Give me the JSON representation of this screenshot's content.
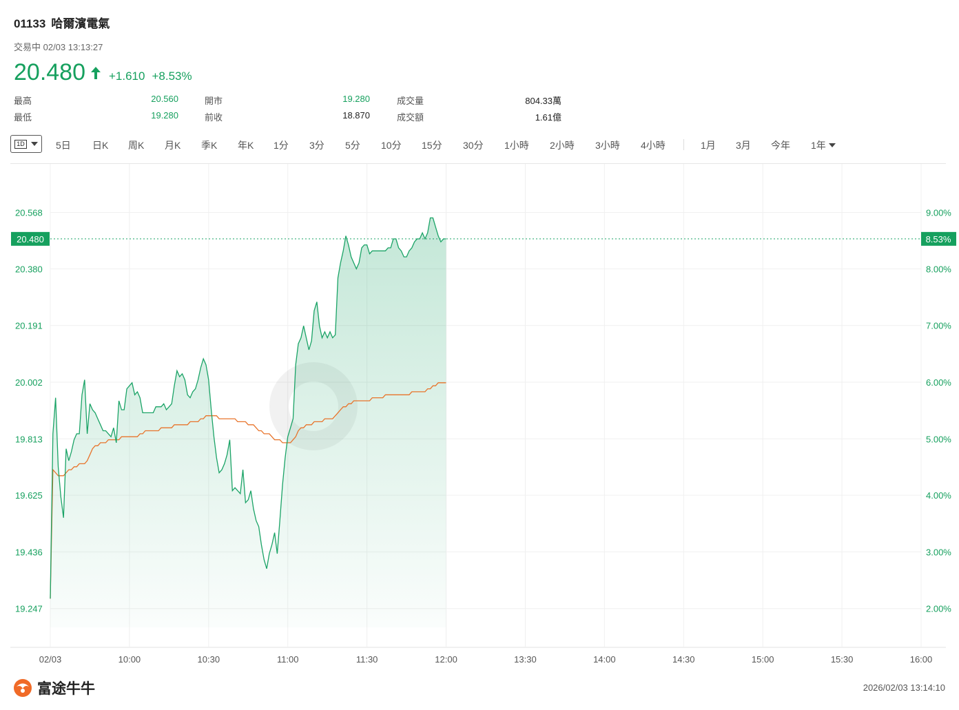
{
  "header": {
    "code": "01133",
    "name": "哈爾濱電氣",
    "status": "交易中 02/03 13:13:27",
    "price": "20.480",
    "change": "+1.610",
    "change_pct": "+8.53%",
    "up_color": "#16a05e",
    "arrow_icon": "arrow-up-icon"
  },
  "stats": [
    {
      "label": "最高",
      "value": "20.560",
      "tone": "green"
    },
    {
      "label": "最低",
      "value": "19.280",
      "tone": "green"
    },
    {
      "label": "開市",
      "value": "19.280",
      "tone": "green"
    },
    {
      "label": "前收",
      "value": "18.870",
      "tone": "dark"
    },
    {
      "label": "成交量",
      "value": "804.33萬",
      "tone": "dark"
    },
    {
      "label": "成交額",
      "value": "1.61億",
      "tone": "dark"
    }
  ],
  "toolbar": {
    "period_box": "1D",
    "tabs": [
      "5日",
      "日K",
      "周K",
      "月K",
      "季K",
      "年K",
      "1分",
      "3分",
      "5分",
      "10分",
      "15分",
      "30分",
      "1小時",
      "2小時",
      "3小時",
      "4小時",
      "1月",
      "3月",
      "今年",
      "1年"
    ]
  },
  "chart_data": {
    "type": "line",
    "y_ticks": [
      "20.568",
      "20.380",
      "20.191",
      "20.002",
      "19.813",
      "19.625",
      "19.436",
      "19.247"
    ],
    "y_tick_values": [
      20.568,
      20.38,
      20.191,
      20.002,
      19.813,
      19.625,
      19.436,
      19.247
    ],
    "y_right_ticks": [
      "9.00%",
      "8.00%",
      "7.00%",
      "6.00%",
      "5.00%",
      "4.00%",
      "3.00%",
      "2.00%"
    ],
    "x_ticks": [
      "02/03",
      "10:00",
      "10:30",
      "11:00",
      "11:30",
      "12:00",
      "13:30",
      "14:00",
      "14:30",
      "15:00",
      "15:30",
      "16:00"
    ],
    "current_price_label": "20.480",
    "current_pct_label": "8.53%",
    "current_value": 20.48,
    "prev_close": 18.87,
    "ylim": [
      19.12,
      20.73
    ],
    "price_color": "#1aa366",
    "avg_color": "#e8732a",
    "price_series": [
      [
        0,
        19.28
      ],
      [
        1,
        19.83
      ],
      [
        2,
        19.95
      ],
      [
        3,
        19.72
      ],
      [
        4,
        19.62
      ],
      [
        5,
        19.55
      ],
      [
        6,
        19.78
      ],
      [
        7,
        19.74
      ],
      [
        8,
        19.77
      ],
      [
        9,
        19.81
      ],
      [
        10,
        19.83
      ],
      [
        11,
        19.83
      ],
      [
        12,
        19.96
      ],
      [
        13,
        20.01
      ],
      [
        14,
        19.83
      ],
      [
        15,
        19.93
      ],
      [
        16,
        19.91
      ],
      [
        17,
        19.9
      ],
      [
        18,
        19.88
      ],
      [
        19,
        19.86
      ],
      [
        20,
        19.84
      ],
      [
        21,
        19.84
      ],
      [
        22,
        19.83
      ],
      [
        23,
        19.82
      ],
      [
        24,
        19.85
      ],
      [
        25,
        19.8
      ],
      [
        26,
        19.94
      ],
      [
        27,
        19.91
      ],
      [
        28,
        19.91
      ],
      [
        29,
        19.98
      ],
      [
        30,
        19.99
      ],
      [
        31,
        20.0
      ],
      [
        32,
        19.96
      ],
      [
        33,
        19.97
      ],
      [
        34,
        19.95
      ],
      [
        35,
        19.9
      ],
      [
        36,
        19.9
      ],
      [
        37,
        19.9
      ],
      [
        38,
        19.9
      ],
      [
        39,
        19.9
      ],
      [
        40,
        19.92
      ],
      [
        41,
        19.92
      ],
      [
        42,
        19.92
      ],
      [
        43,
        19.93
      ],
      [
        44,
        19.91
      ],
      [
        45,
        19.92
      ],
      [
        46,
        19.93
      ],
      [
        47,
        19.99
      ],
      [
        48,
        20.04
      ],
      [
        49,
        20.02
      ],
      [
        50,
        20.03
      ],
      [
        51,
        20.01
      ],
      [
        52,
        19.96
      ],
      [
        53,
        19.95
      ],
      [
        54,
        19.97
      ],
      [
        55,
        19.98
      ],
      [
        56,
        20.01
      ],
      [
        57,
        20.05
      ],
      [
        58,
        20.08
      ],
      [
        59,
        20.06
      ],
      [
        60,
        20.01
      ],
      [
        61,
        19.91
      ],
      [
        62,
        19.82
      ],
      [
        63,
        19.75
      ],
      [
        64,
        19.7
      ],
      [
        65,
        19.71
      ],
      [
        66,
        19.73
      ],
      [
        67,
        19.76
      ],
      [
        68,
        19.81
      ],
      [
        69,
        19.64
      ],
      [
        70,
        19.65
      ],
      [
        71,
        19.64
      ],
      [
        72,
        19.63
      ],
      [
        73,
        19.71
      ],
      [
        74,
        19.6
      ],
      [
        75,
        19.61
      ],
      [
        76,
        19.64
      ],
      [
        77,
        19.58
      ],
      [
        78,
        19.54
      ],
      [
        79,
        19.52
      ],
      [
        80,
        19.46
      ],
      [
        81,
        19.41
      ],
      [
        82,
        19.38
      ],
      [
        83,
        19.43
      ],
      [
        84,
        19.46
      ],
      [
        85,
        19.5
      ],
      [
        86,
        19.43
      ],
      [
        87,
        19.54
      ],
      [
        88,
        19.66
      ],
      [
        89,
        19.75
      ],
      [
        90,
        19.82
      ],
      [
        91,
        19.85
      ],
      [
        92,
        19.88
      ],
      [
        93,
        20.06
      ],
      [
        94,
        20.13
      ],
      [
        95,
        20.15
      ],
      [
        96,
        20.19
      ],
      [
        97,
        20.15
      ],
      [
        98,
        20.11
      ],
      [
        99,
        20.14
      ],
      [
        100,
        20.24
      ],
      [
        101,
        20.27
      ],
      [
        102,
        20.19
      ],
      [
        103,
        20.15
      ],
      [
        104,
        20.17
      ],
      [
        105,
        20.15
      ],
      [
        106,
        20.17
      ],
      [
        107,
        20.15
      ],
      [
        108,
        20.16
      ],
      [
        109,
        20.35
      ],
      [
        110,
        20.4
      ],
      [
        111,
        20.44
      ],
      [
        112,
        20.49
      ],
      [
        113,
        20.46
      ],
      [
        114,
        20.42
      ],
      [
        115,
        20.4
      ],
      [
        116,
        20.38
      ],
      [
        117,
        20.4
      ],
      [
        118,
        20.45
      ],
      [
        119,
        20.46
      ],
      [
        120,
        20.46
      ],
      [
        121,
        20.43
      ],
      [
        122,
        20.44
      ],
      [
        123,
        20.44
      ],
      [
        124,
        20.44
      ],
      [
        125,
        20.44
      ],
      [
        126,
        20.44
      ],
      [
        127,
        20.44
      ],
      [
        128,
        20.45
      ],
      [
        129,
        20.45
      ],
      [
        130,
        20.48
      ],
      [
        131,
        20.48
      ],
      [
        132,
        20.45
      ],
      [
        133,
        20.44
      ],
      [
        134,
        20.42
      ],
      [
        135,
        20.42
      ],
      [
        136,
        20.44
      ],
      [
        137,
        20.45
      ],
      [
        138,
        20.47
      ],
      [
        139,
        20.48
      ],
      [
        140,
        20.48
      ],
      [
        141,
        20.5
      ],
      [
        142,
        20.48
      ],
      [
        143,
        20.5
      ],
      [
        144,
        20.55
      ],
      [
        145,
        20.55
      ],
      [
        146,
        20.52
      ],
      [
        147,
        20.49
      ],
      [
        148,
        20.47
      ],
      [
        149,
        20.48
      ],
      [
        150,
        20.48
      ]
    ],
    "avg_series": [
      [
        0,
        19.28
      ],
      [
        1,
        19.71
      ],
      [
        2,
        19.7
      ],
      [
        3,
        19.69
      ],
      [
        4,
        19.69
      ],
      [
        5,
        19.69
      ],
      [
        6,
        19.7
      ],
      [
        7,
        19.71
      ],
      [
        8,
        19.71
      ],
      [
        9,
        19.72
      ],
      [
        10,
        19.72
      ],
      [
        11,
        19.73
      ],
      [
        12,
        19.73
      ],
      [
        13,
        19.73
      ],
      [
        14,
        19.74
      ],
      [
        15,
        19.76
      ],
      [
        16,
        19.78
      ],
      [
        17,
        19.79
      ],
      [
        18,
        19.79
      ],
      [
        19,
        19.8
      ],
      [
        20,
        19.8
      ],
      [
        21,
        19.8
      ],
      [
        22,
        19.81
      ],
      [
        23,
        19.81
      ],
      [
        24,
        19.81
      ],
      [
        25,
        19.81
      ],
      [
        26,
        19.81
      ],
      [
        27,
        19.82
      ],
      [
        28,
        19.82
      ],
      [
        29,
        19.82
      ],
      [
        30,
        19.82
      ],
      [
        31,
        19.82
      ],
      [
        32,
        19.82
      ],
      [
        33,
        19.82
      ],
      [
        34,
        19.83
      ],
      [
        35,
        19.83
      ],
      [
        36,
        19.84
      ],
      [
        37,
        19.84
      ],
      [
        38,
        19.84
      ],
      [
        39,
        19.84
      ],
      [
        40,
        19.84
      ],
      [
        41,
        19.84
      ],
      [
        42,
        19.85
      ],
      [
        43,
        19.85
      ],
      [
        44,
        19.85
      ],
      [
        45,
        19.85
      ],
      [
        46,
        19.85
      ],
      [
        47,
        19.86
      ],
      [
        48,
        19.86
      ],
      [
        49,
        19.86
      ],
      [
        50,
        19.86
      ],
      [
        51,
        19.86
      ],
      [
        52,
        19.86
      ],
      [
        53,
        19.87
      ],
      [
        54,
        19.87
      ],
      [
        55,
        19.87
      ],
      [
        56,
        19.87
      ],
      [
        57,
        19.88
      ],
      [
        58,
        19.88
      ],
      [
        59,
        19.89
      ],
      [
        60,
        19.89
      ],
      [
        61,
        19.89
      ],
      [
        62,
        19.89
      ],
      [
        63,
        19.89
      ],
      [
        64,
        19.88
      ],
      [
        65,
        19.88
      ],
      [
        66,
        19.88
      ],
      [
        67,
        19.88
      ],
      [
        68,
        19.88
      ],
      [
        69,
        19.88
      ],
      [
        70,
        19.88
      ],
      [
        71,
        19.87
      ],
      [
        72,
        19.87
      ],
      [
        73,
        19.87
      ],
      [
        74,
        19.87
      ],
      [
        75,
        19.86
      ],
      [
        76,
        19.86
      ],
      [
        77,
        19.86
      ],
      [
        78,
        19.85
      ],
      [
        79,
        19.84
      ],
      [
        80,
        19.84
      ],
      [
        81,
        19.83
      ],
      [
        82,
        19.83
      ],
      [
        83,
        19.83
      ],
      [
        84,
        19.82
      ],
      [
        85,
        19.81
      ],
      [
        86,
        19.81
      ],
      [
        87,
        19.81
      ],
      [
        88,
        19.8
      ],
      [
        89,
        19.8
      ],
      [
        90,
        19.8
      ],
      [
        91,
        19.8
      ],
      [
        92,
        19.81
      ],
      [
        93,
        19.82
      ],
      [
        94,
        19.84
      ],
      [
        95,
        19.85
      ],
      [
        96,
        19.85
      ],
      [
        97,
        19.86
      ],
      [
        98,
        19.86
      ],
      [
        99,
        19.86
      ],
      [
        100,
        19.87
      ],
      [
        101,
        19.87
      ],
      [
        102,
        19.87
      ],
      [
        103,
        19.87
      ],
      [
        104,
        19.88
      ],
      [
        105,
        19.88
      ],
      [
        106,
        19.88
      ],
      [
        107,
        19.88
      ],
      [
        108,
        19.89
      ],
      [
        109,
        19.9
      ],
      [
        110,
        19.91
      ],
      [
        111,
        19.92
      ],
      [
        112,
        19.92
      ],
      [
        113,
        19.93
      ],
      [
        114,
        19.93
      ],
      [
        115,
        19.94
      ],
      [
        116,
        19.94
      ],
      [
        117,
        19.94
      ],
      [
        118,
        19.94
      ],
      [
        119,
        19.94
      ],
      [
        120,
        19.94
      ],
      [
        121,
        19.94
      ],
      [
        122,
        19.95
      ],
      [
        123,
        19.95
      ],
      [
        124,
        19.95
      ],
      [
        125,
        19.95
      ],
      [
        126,
        19.95
      ],
      [
        127,
        19.96
      ],
      [
        128,
        19.96
      ],
      [
        129,
        19.96
      ],
      [
        130,
        19.96
      ],
      [
        131,
        19.96
      ],
      [
        132,
        19.96
      ],
      [
        133,
        19.96
      ],
      [
        134,
        19.96
      ],
      [
        135,
        19.96
      ],
      [
        136,
        19.96
      ],
      [
        137,
        19.97
      ],
      [
        138,
        19.97
      ],
      [
        139,
        19.97
      ],
      [
        140,
        19.97
      ],
      [
        141,
        19.97
      ],
      [
        142,
        19.97
      ],
      [
        143,
        19.98
      ],
      [
        144,
        19.98
      ],
      [
        145,
        19.99
      ],
      [
        146,
        19.99
      ],
      [
        147,
        20.0
      ],
      [
        148,
        20.0
      ],
      [
        149,
        20.0
      ],
      [
        150,
        20.0
      ]
    ]
  },
  "footer": {
    "brand": "富途牛牛",
    "logo_icon": "futu-logo-icon",
    "timestamp": "2026/02/03 13:14:10"
  }
}
